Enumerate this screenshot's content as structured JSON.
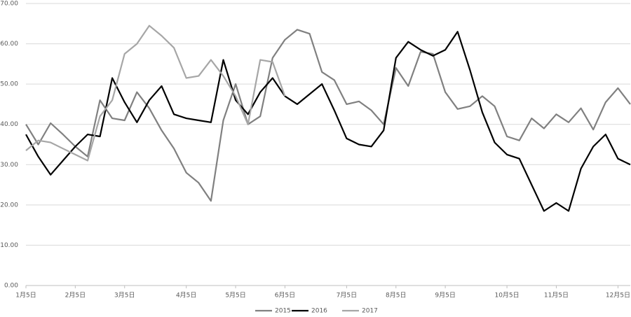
{
  "chart_data": {
    "type": "line",
    "categories": [
      "1月5日",
      null,
      null,
      null,
      "2月5日",
      null,
      null,
      null,
      "3月5日",
      null,
      null,
      null,
      null,
      "4月5日",
      null,
      null,
      null,
      "5月5日",
      null,
      null,
      null,
      "6月5日",
      null,
      null,
      null,
      null,
      "7月5日",
      null,
      null,
      null,
      "8月5日",
      null,
      null,
      null,
      "9月5日",
      null,
      null,
      null,
      null,
      "10月5日",
      null,
      null,
      null,
      "11月5日",
      null,
      null,
      null,
      null,
      "12月5日",
      null
    ],
    "series": [
      {
        "name": "2015",
        "color": "#808080",
        "values": [
          40,
          35,
          40.3,
          37.5,
          34.5,
          32,
          46,
          41.5,
          41,
          48,
          44,
          38.5,
          34,
          28,
          25.5,
          21,
          41,
          50,
          40,
          42,
          56.5,
          61,
          63.5,
          62.5,
          53,
          51,
          45,
          45.7,
          43.5,
          40,
          54,
          49.5,
          58,
          57.5,
          48,
          43.8,
          44.5,
          47,
          44.5,
          37,
          36,
          41.5,
          39,
          42.5,
          40.5,
          44,
          38.7,
          45.5,
          49,
          45
        ]
      },
      {
        "name": "2016",
        "color": "#000000",
        "values": [
          37.5,
          32,
          27.5,
          31,
          34.5,
          37.5,
          37,
          51.5,
          45.5,
          40.5,
          46,
          49.5,
          42.5,
          41.5,
          41,
          40.5,
          56,
          46,
          42.5,
          48,
          51.5,
          47,
          45,
          47.5,
          50,
          43.5,
          36.5,
          35,
          34.5,
          38.5,
          56.5,
          60.5,
          58.5,
          57,
          58.5,
          63,
          53.5,
          43,
          35.5,
          32.5,
          31.5,
          25,
          18.5,
          20.5,
          18.5,
          29,
          34.5,
          37.5,
          31.5,
          30
        ]
      },
      {
        "name": "2017",
        "color": "#a6a6a6",
        "values": [
          33.5,
          36,
          35.5,
          34,
          32.5,
          31,
          42,
          46,
          57.5,
          60,
          64.5,
          62,
          59,
          51.5,
          52,
          56,
          52,
          47,
          40,
          56,
          55.5,
          47,
          null,
          null,
          null,
          null,
          null,
          null,
          null,
          null,
          null,
          null,
          null,
          null,
          null,
          null,
          null,
          null,
          null,
          null,
          null,
          null,
          null,
          null,
          null,
          null,
          null,
          null,
          null,
          null
        ]
      }
    ],
    "ylim": [
      0,
      70
    ],
    "yticks": [
      {
        "value": 0,
        "label": "0.00"
      },
      {
        "value": 10,
        "label": "10.00"
      },
      {
        "value": 20,
        "label": "20.00"
      },
      {
        "value": 30,
        "label": "30.00"
      },
      {
        "value": 40,
        "label": "40.00"
      },
      {
        "value": 50,
        "label": "50.00"
      },
      {
        "value": 60,
        "label": "60.00"
      },
      {
        "value": 70,
        "label": "70.00"
      }
    ],
    "grid": true
  }
}
